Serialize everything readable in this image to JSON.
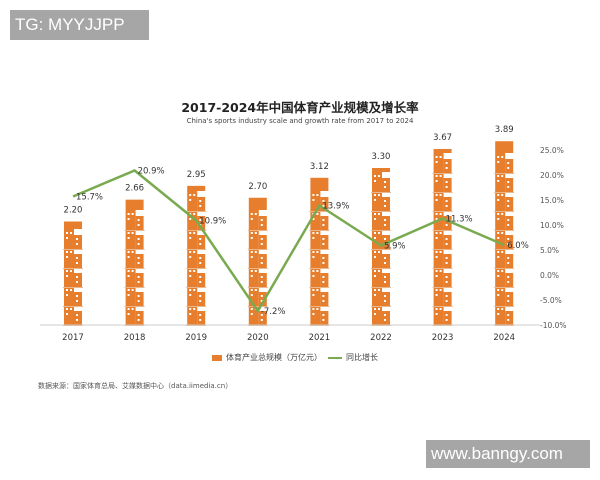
{
  "watermarks": {
    "top_left": "TG: MYYJJPP",
    "bottom_right": "www.banngy.com"
  },
  "chart": {
    "title": "2017-2024年中国体育产业规模及增长率",
    "subtitle": "China's sports industry scale and growth rate from 2017 to 2024",
    "legend": {
      "bar_label": "体育产业总规模（万亿元）",
      "line_label": "同比增长"
    },
    "source": "数据来源：国家体育总局、艾媒数据中心（data.iimedia.cn）"
  },
  "colors": {
    "bar": "#e67e2e",
    "line": "#7aaa50",
    "axis": "#cccccc"
  },
  "chart_data": {
    "type": "bar",
    "title": "2017-2024年中国体育产业规模及增长率",
    "subtitle": "China's sports industry scale and growth rate from 2017 to 2024",
    "categories": [
      "2017",
      "2018",
      "2019",
      "2020",
      "2021",
      "2022",
      "2023",
      "2024"
    ],
    "series": [
      {
        "name": "体育产业总规模（万亿元）",
        "type": "pictorial-bar",
        "axis": "left (hidden)",
        "values": [
          2.2,
          2.66,
          2.95,
          2.7,
          3.12,
          3.3,
          3.67,
          3.89
        ],
        "labels": [
          "2.20",
          "2.66",
          "2.95",
          "2.70",
          "3.12",
          "3.30",
          "3.67",
          "3.89"
        ]
      },
      {
        "name": "同比增长",
        "type": "line",
        "axis": "right",
        "values": [
          15.7,
          20.9,
          10.9,
          -7.2,
          13.9,
          5.9,
          11.3,
          6.0
        ],
        "labels": [
          "15.7%",
          "20.9%",
          "10.9%",
          "-7.2%",
          "13.9%",
          "5.9%",
          "11.3%",
          "6.0%"
        ]
      }
    ],
    "y2_axis": {
      "ticks": [
        "25.0%",
        "20.0%",
        "15.0%",
        "10.0%",
        "5.0%",
        "0.0%",
        "-5.0%",
        "-10.0%"
      ],
      "range": [
        -10,
        25
      ]
    },
    "xlabel": "",
    "ylabel": "",
    "grid": false,
    "legend_position": "bottom"
  }
}
